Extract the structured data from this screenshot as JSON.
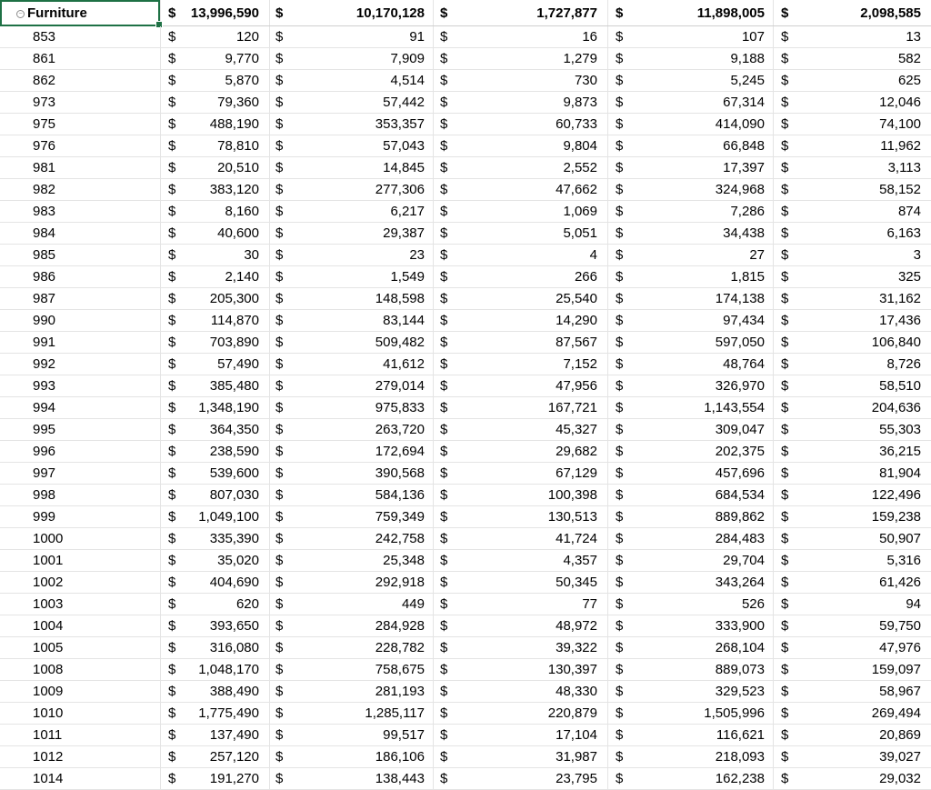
{
  "sheet": {
    "currency_symbol": "$",
    "header": {
      "label": "Furniture",
      "values": [
        "13,996,590",
        "10,170,128",
        "1,727,877",
        "11,898,005",
        "2,098,585"
      ]
    },
    "rows": [
      {
        "label": "853",
        "values": [
          "120",
          "91",
          "16",
          "107",
          "13"
        ]
      },
      {
        "label": "861",
        "values": [
          "9,770",
          "7,909",
          "1,279",
          "9,188",
          "582"
        ]
      },
      {
        "label": "862",
        "values": [
          "5,870",
          "4,514",
          "730",
          "5,245",
          "625"
        ]
      },
      {
        "label": "973",
        "values": [
          "79,360",
          "57,442",
          "9,873",
          "67,314",
          "12,046"
        ]
      },
      {
        "label": "975",
        "values": [
          "488,190",
          "353,357",
          "60,733",
          "414,090",
          "74,100"
        ]
      },
      {
        "label": "976",
        "values": [
          "78,810",
          "57,043",
          "9,804",
          "66,848",
          "11,962"
        ]
      },
      {
        "label": "981",
        "values": [
          "20,510",
          "14,845",
          "2,552",
          "17,397",
          "3,113"
        ]
      },
      {
        "label": "982",
        "values": [
          "383,120",
          "277,306",
          "47,662",
          "324,968",
          "58,152"
        ]
      },
      {
        "label": "983",
        "values": [
          "8,160",
          "6,217",
          "1,069",
          "7,286",
          "874"
        ]
      },
      {
        "label": "984",
        "values": [
          "40,600",
          "29,387",
          "5,051",
          "34,438",
          "6,163"
        ]
      },
      {
        "label": "985",
        "values": [
          "30",
          "23",
          "4",
          "27",
          "3"
        ]
      },
      {
        "label": "986",
        "values": [
          "2,140",
          "1,549",
          "266",
          "1,815",
          "325"
        ]
      },
      {
        "label": "987",
        "values": [
          "205,300",
          "148,598",
          "25,540",
          "174,138",
          "31,162"
        ]
      },
      {
        "label": "990",
        "values": [
          "114,870",
          "83,144",
          "14,290",
          "97,434",
          "17,436"
        ]
      },
      {
        "label": "991",
        "values": [
          "703,890",
          "509,482",
          "87,567",
          "597,050",
          "106,840"
        ]
      },
      {
        "label": "992",
        "values": [
          "57,490",
          "41,612",
          "7,152",
          "48,764",
          "8,726"
        ]
      },
      {
        "label": "993",
        "values": [
          "385,480",
          "279,014",
          "47,956",
          "326,970",
          "58,510"
        ]
      },
      {
        "label": "994",
        "values": [
          "1,348,190",
          "975,833",
          "167,721",
          "1,143,554",
          "204,636"
        ]
      },
      {
        "label": "995",
        "values": [
          "364,350",
          "263,720",
          "45,327",
          "309,047",
          "55,303"
        ]
      },
      {
        "label": "996",
        "values": [
          "238,590",
          "172,694",
          "29,682",
          "202,375",
          "36,215"
        ]
      },
      {
        "label": "997",
        "values": [
          "539,600",
          "390,568",
          "67,129",
          "457,696",
          "81,904"
        ]
      },
      {
        "label": "998",
        "values": [
          "807,030",
          "584,136",
          "100,398",
          "684,534",
          "122,496"
        ]
      },
      {
        "label": "999",
        "values": [
          "1,049,100",
          "759,349",
          "130,513",
          "889,862",
          "159,238"
        ]
      },
      {
        "label": "1000",
        "values": [
          "335,390",
          "242,758",
          "41,724",
          "284,483",
          "50,907"
        ]
      },
      {
        "label": "1001",
        "values": [
          "35,020",
          "25,348",
          "4,357",
          "29,704",
          "5,316"
        ]
      },
      {
        "label": "1002",
        "values": [
          "404,690",
          "292,918",
          "50,345",
          "343,264",
          "61,426"
        ]
      },
      {
        "label": "1003",
        "values": [
          "620",
          "449",
          "77",
          "526",
          "94"
        ]
      },
      {
        "label": "1004",
        "values": [
          "393,650",
          "284,928",
          "48,972",
          "333,900",
          "59,750"
        ]
      },
      {
        "label": "1005",
        "values": [
          "316,080",
          "228,782",
          "39,322",
          "268,104",
          "47,976"
        ]
      },
      {
        "label": "1008",
        "values": [
          "1,048,170",
          "758,675",
          "130,397",
          "889,073",
          "159,097"
        ]
      },
      {
        "label": "1009",
        "values": [
          "388,490",
          "281,193",
          "48,330",
          "329,523",
          "58,967"
        ]
      },
      {
        "label": "1010",
        "values": [
          "1,775,490",
          "1,285,117",
          "220,879",
          "1,505,996",
          "269,494"
        ]
      },
      {
        "label": "1011",
        "values": [
          "137,490",
          "99,517",
          "17,104",
          "116,621",
          "20,869"
        ]
      },
      {
        "label": "1012",
        "values": [
          "257,120",
          "186,106",
          "31,987",
          "218,093",
          "39,027"
        ]
      },
      {
        "label": "1014",
        "values": [
          "191,270",
          "138,443",
          "23,795",
          "162,238",
          "29,032"
        ]
      }
    ]
  }
}
